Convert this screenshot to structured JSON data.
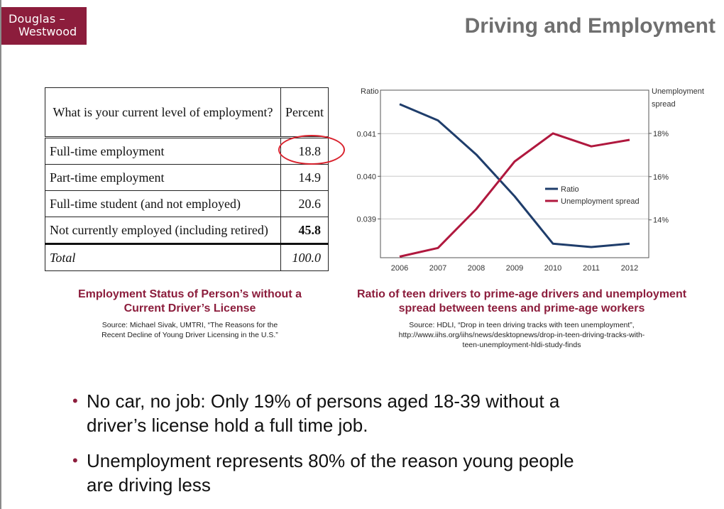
{
  "logo": {
    "line1": "Douglas –",
    "line2": "Westwood"
  },
  "slide_title": "Driving and Employment",
  "table": {
    "header_question": "What is your current level of employment?",
    "header_percent": "Percent",
    "rows": [
      {
        "label": "Full-time employment",
        "value": "18.8"
      },
      {
        "label": "Part-time employment",
        "value": "14.9"
      },
      {
        "label": "Full-time student (and not employed)",
        "value": "20.6"
      },
      {
        "label": "Not currently employed (including retired)",
        "value": "45.8"
      }
    ],
    "total_label": "Total",
    "total_value": "100.0"
  },
  "left_caption": {
    "title_line1": "Employment Status of Person’s without a",
    "title_line2": "Current Driver’s License",
    "source_line1": "Source: Michael Sivak, UMTRI, “The Reasons for the",
    "source_line2": "Recent Decline of Young Driver Licensing in the U.S.”"
  },
  "right_caption": {
    "title_line1": "Ratio of teen drivers to prime-age drivers and unemployment",
    "title_line2": "spread between teens and prime-age workers",
    "source_line1": "Source: HDLI, “Drop in teen driving tracks with teen unemployment”,",
    "source_line2": "http://www.iihs.org/iihs/news/desktopnews/drop-in-teen-driving-tracks-with-",
    "source_line3": "teen-unemployment-hldi-study-finds"
  },
  "chart_data": {
    "type": "line",
    "x": [
      "2006",
      "2007",
      "2008",
      "2009",
      "2010",
      "2011",
      "2012"
    ],
    "left_axis": {
      "label": "Ratio",
      "ticks": [
        "0.041",
        "0.040",
        "0.039"
      ],
      "tick_values": [
        0.041,
        0.04,
        0.039
      ],
      "range": [
        0.03809,
        0.04202
      ]
    },
    "right_axis": {
      "label_line1": "Unemployment",
      "label_line2": "spread",
      "ticks": [
        "18%",
        "16%",
        "14%"
      ],
      "tick_values": [
        18,
        16,
        14
      ],
      "range": [
        12.25,
        20.0
      ]
    },
    "series": [
      {
        "name": "Ratio",
        "axis": "left",
        "color": "#1f3d6b",
        "values": [
          0.04169,
          0.04131,
          0.04051,
          0.03953,
          0.03842,
          0.03834,
          0.03842
        ]
      },
      {
        "name": "Unemployment spread",
        "axis": "right",
        "color": "#b0183e",
        "values": [
          12.3,
          12.7,
          14.5,
          16.7,
          18.0,
          17.4,
          17.7
        ]
      }
    ],
    "legend_position": "center-right",
    "grid": "horizontal"
  },
  "bullets": [
    {
      "line1": "No car, no job: Only 19% of persons aged 18-39 without a",
      "line2": "driver’s license hold a full time job."
    },
    {
      "line1": "Unemployment represents 80% of the reason young people",
      "line2": "are driving less"
    }
  ],
  "colors": {
    "brand": "#8c1d3c",
    "highlight_circle": "#d9232e"
  }
}
